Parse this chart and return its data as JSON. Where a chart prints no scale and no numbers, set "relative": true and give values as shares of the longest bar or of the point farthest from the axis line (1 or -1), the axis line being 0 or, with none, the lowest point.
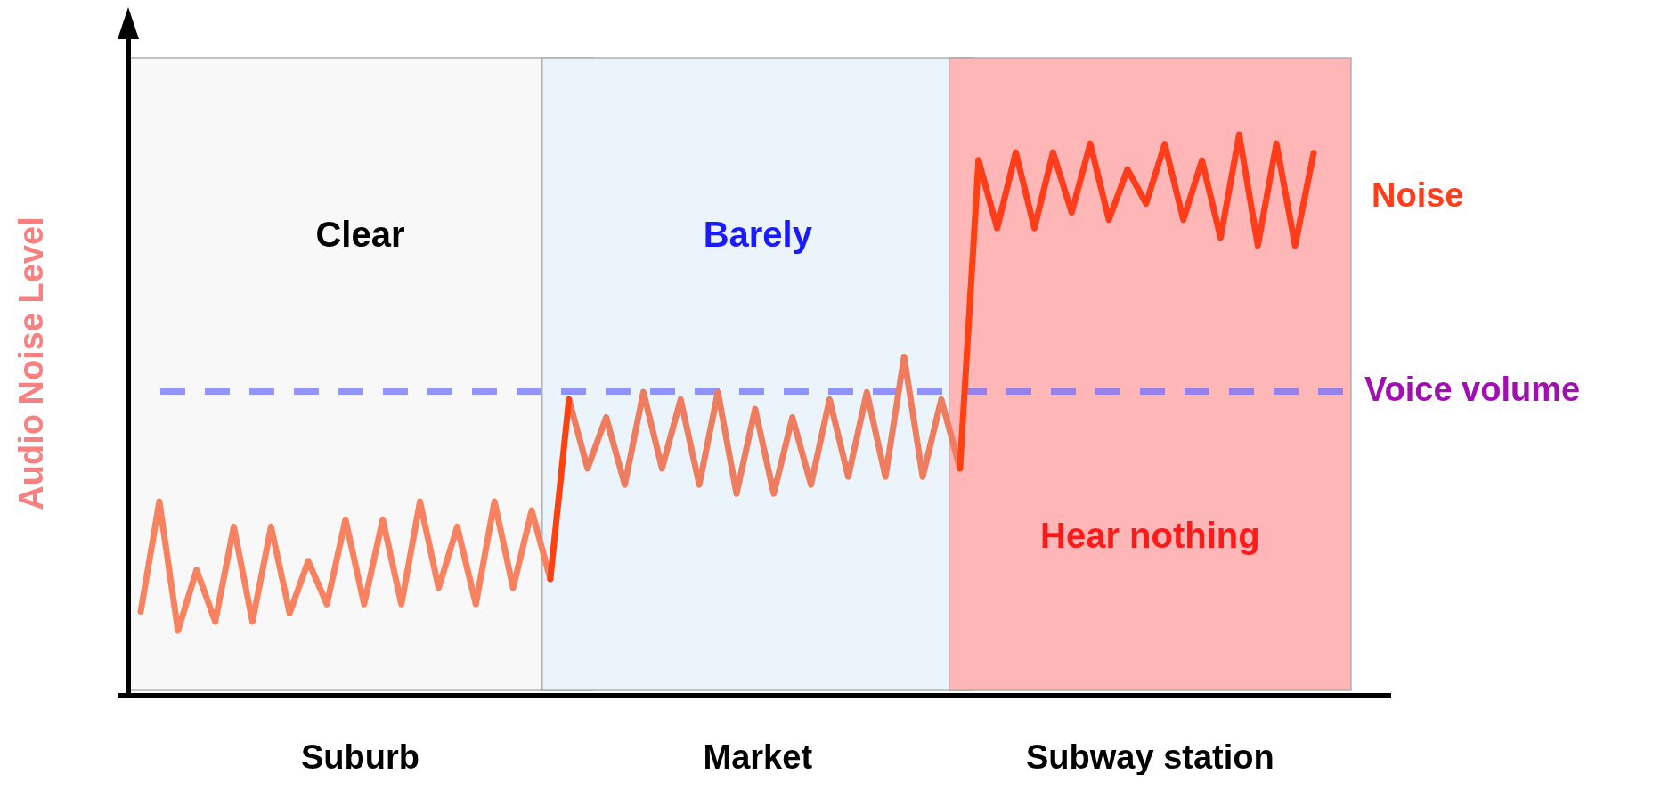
{
  "chart_data": {
    "type": "line",
    "relative": true,
    "ylabel": "Audio Noise Level",
    "categories": [
      null,
      null,
      null,
      null,
      null,
      null,
      null,
      null,
      null,
      null,
      null,
      null,
      null,
      null,
      null,
      null,
      null,
      null,
      null,
      null,
      null,
      null,
      null,
      null,
      null,
      null,
      null,
      null,
      null,
      null,
      null,
      null,
      null,
      null,
      null,
      null,
      null,
      null,
      null,
      null,
      null,
      null,
      null,
      null,
      null,
      null,
      null,
      null,
      null,
      null,
      null,
      null,
      null,
      null,
      null,
      null,
      null,
      null,
      null,
      null,
      null,
      null,
      null,
      null
    ],
    "annotations": [
      "Clear",
      "Barely",
      "Hear nothing",
      "Suburb",
      "Market",
      "Subway station"
    ],
    "ref_lines": [
      {
        "axis": "y",
        "value": 0.542,
        "label": "Voice volume",
        "color": "#6a6aff",
        "line_style": "dashed"
      }
    ],
    "series": [
      {
        "color": "#f8825f",
        "values": [
          0.15,
          0.346,
          0.116,
          0.224,
          0.132,
          0.301,
          0.132,
          0.301,
          0.147,
          0.24,
          0.163,
          0.314,
          0.163,
          0.314,
          0.163,
          0.346,
          0.192,
          0.301,
          0.163,
          0.346,
          0.192,
          0.33,
          0.208,
          null,
          null,
          null,
          null,
          null,
          null,
          null,
          null,
          null,
          null,
          null,
          null,
          null,
          null,
          null,
          null,
          null,
          null,
          null,
          null,
          null,
          null,
          null,
          null,
          null,
          null,
          null,
          null,
          null,
          null,
          null,
          null,
          null,
          null,
          null,
          null,
          null,
          null,
          null,
          null,
          null
        ]
      },
      {
        "color": "#ee7d60",
        "values": [
          null,
          null,
          null,
          null,
          null,
          null,
          null,
          null,
          null,
          null,
          null,
          null,
          null,
          null,
          null,
          null,
          null,
          null,
          null,
          null,
          null,
          null,
          null,
          0.528,
          0.405,
          0.496,
          0.376,
          0.541,
          0.405,
          0.528,
          0.376,
          0.541,
          0.36,
          0.511,
          0.36,
          0.496,
          0.376,
          0.528,
          0.39,
          0.541,
          0.39,
          0.604,
          0.39,
          0.528,
          0.405,
          null,
          null,
          null,
          null,
          null,
          null,
          null,
          null,
          null,
          null,
          null,
          null,
          null,
          null,
          null,
          null,
          null,
          null,
          null
        ]
      },
      {
        "color": "#ff4010",
        "values": [
          null,
          null,
          null,
          null,
          null,
          null,
          null,
          null,
          null,
          null,
          null,
          null,
          null,
          null,
          null,
          null,
          null,
          null,
          null,
          null,
          null,
          null,
          0.208,
          0.528,
          null,
          null,
          null,
          null,
          null,
          null,
          null,
          null,
          null,
          null,
          null,
          null,
          null,
          null,
          null,
          null,
          null,
          null,
          null,
          null,
          0.405,
          0.954,
          null,
          null,
          null,
          null,
          null,
          null,
          null,
          null,
          null,
          null,
          null,
          null,
          null,
          null,
          null,
          null,
          null,
          null
        ]
      },
      {
        "name": "Noise",
        "color": "#ff3d1a",
        "values": [
          null,
          null,
          null,
          null,
          null,
          null,
          null,
          null,
          null,
          null,
          null,
          null,
          null,
          null,
          null,
          null,
          null,
          null,
          null,
          null,
          null,
          null,
          null,
          null,
          null,
          null,
          null,
          null,
          null,
          null,
          null,
          null,
          null,
          null,
          null,
          null,
          null,
          null,
          null,
          null,
          null,
          null,
          null,
          null,
          null,
          0.954,
          0.833,
          0.968,
          0.833,
          0.968,
          0.861,
          0.984,
          0.848,
          0.938,
          0.877,
          0.983,
          0.848,
          0.954,
          0.816,
          1,
          0.802,
          0.984,
          0.802,
          0.967
        ]
      }
    ]
  }
}
